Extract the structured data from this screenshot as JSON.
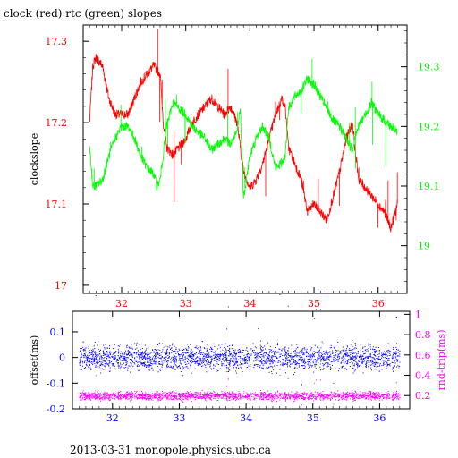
{
  "figure_title": "clock (red) rtc (green) slopes",
  "footer": "2013-03-31  monopole.physics.ubc.ca",
  "colors": {
    "clock": "#ff0000",
    "rtc": "#00ff00",
    "offset": "#0000ff",
    "rnd_trip": "#ff00ff",
    "axis": "#000000"
  },
  "chart_data": [
    {
      "type": "line",
      "title": "clock (red) rtc (green) slopes",
      "xlim": [
        31.4,
        36.45
      ],
      "x_ticks": [
        32,
        33,
        34,
        35,
        36
      ],
      "x_tick_labels": [
        "32",
        "33",
        "34",
        "35",
        "36"
      ],
      "ylabel": "clockslope",
      "ylim": [
        16.99,
        17.32
      ],
      "y_ticks": [
        17,
        17.1,
        17.2,
        17.3
      ],
      "y_tick_labels": [
        "17",
        "17.1",
        "17.2",
        "17.3"
      ],
      "y2lim": [
        18.92,
        19.37
      ],
      "y2_ticks": [
        19,
        19.1,
        19.2,
        19.3
      ],
      "y2_tick_labels": [
        "19",
        "19.1",
        "19.2",
        "19.3"
      ],
      "grid": false,
      "series": [
        {
          "name": "clock",
          "axis": "left",
          "x": [
            31.5,
            31.55,
            31.6,
            31.7,
            31.8,
            31.9,
            32.0,
            32.1,
            32.2,
            32.3,
            32.4,
            32.5,
            32.6,
            32.65,
            32.7,
            32.8,
            32.9,
            33.0,
            33.1,
            33.2,
            33.3,
            33.4,
            33.5,
            33.6,
            33.7,
            33.8,
            33.85,
            33.9,
            34.0,
            34.1,
            34.2,
            34.3,
            34.4,
            34.5,
            34.55,
            34.6,
            34.7,
            34.8,
            34.9,
            35.0,
            35.1,
            35.2,
            35.3,
            35.4,
            35.5,
            35.6,
            35.65,
            35.7,
            35.8,
            35.9,
            36.0,
            36.1,
            36.2,
            36.3
          ],
          "y": [
            17.2,
            17.27,
            17.28,
            17.27,
            17.23,
            17.21,
            17.21,
            17.21,
            17.23,
            17.25,
            17.26,
            17.27,
            17.26,
            17.2,
            17.17,
            17.16,
            17.17,
            17.18,
            17.2,
            17.21,
            17.22,
            17.23,
            17.22,
            17.21,
            17.22,
            17.2,
            17.17,
            17.14,
            17.12,
            17.13,
            17.15,
            17.18,
            17.21,
            17.23,
            17.22,
            17.17,
            17.15,
            17.13,
            17.09,
            17.1,
            17.09,
            17.08,
            17.11,
            17.14,
            17.18,
            17.2,
            17.16,
            17.13,
            17.12,
            17.11,
            17.1,
            17.09,
            17.07,
            17.1
          ]
        },
        {
          "name": "rtc",
          "axis": "right",
          "x": [
            31.5,
            31.55,
            31.6,
            31.7,
            31.8,
            31.9,
            32.0,
            32.1,
            32.2,
            32.3,
            32.4,
            32.5,
            32.55,
            32.6,
            32.7,
            32.8,
            32.9,
            33.0,
            33.1,
            33.2,
            33.3,
            33.4,
            33.5,
            33.6,
            33.7,
            33.8,
            33.85,
            33.9,
            34.0,
            34.1,
            34.2,
            34.3,
            34.4,
            34.5,
            34.55,
            34.6,
            34.7,
            34.8,
            34.9,
            35.0,
            35.1,
            35.2,
            35.3,
            35.4,
            35.5,
            35.6,
            35.65,
            35.7,
            35.8,
            35.9,
            36.0,
            36.1,
            36.2,
            36.3
          ],
          "y": [
            19.17,
            19.1,
            19.1,
            19.11,
            19.15,
            19.18,
            19.2,
            19.2,
            19.18,
            19.15,
            19.13,
            19.12,
            19.1,
            19.11,
            19.2,
            19.24,
            19.23,
            19.22,
            19.2,
            19.19,
            19.18,
            19.16,
            19.17,
            19.18,
            19.17,
            19.19,
            19.23,
            19.08,
            19.15,
            19.18,
            19.2,
            19.18,
            19.13,
            19.14,
            19.15,
            19.23,
            19.25,
            19.26,
            19.28,
            19.27,
            19.25,
            19.23,
            19.21,
            19.2,
            19.18,
            19.16,
            19.19,
            19.2,
            19.22,
            19.24,
            19.22,
            19.21,
            19.2,
            19.19
          ]
        }
      ]
    },
    {
      "type": "scatter",
      "xlim": [
        31.4,
        36.45
      ],
      "x_ticks": [
        32,
        33,
        34,
        35,
        36
      ],
      "x_tick_labels": [
        "32",
        "33",
        "34",
        "35",
        "36"
      ],
      "ylabel": "offset(ms)",
      "ylim": [
        -0.2,
        0.18
      ],
      "y_ticks": [
        -0.2,
        -0.1,
        0,
        0.1
      ],
      "y_tick_labels": [
        "-0.2",
        "-0.1",
        "0",
        "0.1"
      ],
      "y2label": "rnd-trip(ms)",
      "y2lim": [
        0.07,
        1.03
      ],
      "y2_ticks": [
        0.2,
        0.4,
        0.6,
        0.8,
        1
      ],
      "y2_tick_labels": [
        "0.2",
        "0.4",
        "0.6",
        "0.8",
        "1"
      ],
      "grid": false,
      "series": [
        {
          "name": "offset",
          "axis": "left",
          "x_range": [
            31.5,
            36.3
          ],
          "center": 0.0,
          "spread": 0.03
        },
        {
          "name": "rnd-trip",
          "axis": "right",
          "x_range": [
            31.5,
            36.3
          ],
          "center": 0.2,
          "spread": 0.025
        }
      ]
    }
  ]
}
